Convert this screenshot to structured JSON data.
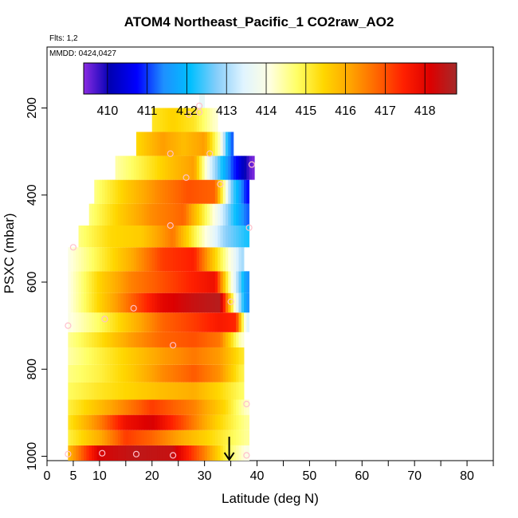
{
  "header": {
    "title": "ATOM4 Northeast_Pacific_1 CO2raw_AO2",
    "flights": "Flts: 1,2",
    "mmdd": "MMDD: 0424,0427"
  },
  "colors": {
    "scale": [
      "#8a2be2",
      "#0000b4",
      "#0000ff",
      "#1e90ff",
      "#00bfff",
      "#87cefa",
      "#e0f4ff",
      "#ffffe0",
      "#ffff66",
      "#ffd700",
      "#ffa500",
      "#ff6600",
      "#ff2000",
      "#dd0000",
      "#a52a2a"
    ],
    "marker": "#ffc0cb",
    "arrow": "#000000"
  },
  "chart_data": {
    "type": "heatmap",
    "title": "ATOM4 Northeast_Pacific_1 CO2raw_AO2",
    "xlabel": "Latitude (deg N)",
    "ylabel": "PSXC (mbar)",
    "xlim": [
      0,
      85
    ],
    "ylim": [
      1010,
      60
    ],
    "x_ticks": [
      0,
      5,
      10,
      20,
      30,
      40,
      50,
      60,
      70,
      80
    ],
    "x_minor_ticks": [
      15,
      25,
      35,
      45,
      55,
      65,
      75,
      85
    ],
    "y_ticks": [
      200,
      400,
      600,
      800,
      1000
    ],
    "colorbar": {
      "min": 409.4,
      "max": 418.8,
      "ticks": [
        410,
        411,
        412,
        413,
        414,
        415,
        416,
        417,
        418
      ]
    },
    "bands": [
      {
        "p_top": 975,
        "p_bot": 1010,
        "lat_min": 4,
        "lat_max": 38,
        "lats": [
          4,
          10,
          17,
          24,
          30,
          34,
          38
        ],
        "vals": [
          415.8,
          418.2,
          418.5,
          418.4,
          416.5,
          415.0,
          414.0
        ]
      },
      {
        "p_top": 940,
        "p_bot": 975,
        "lat_min": 4,
        "lat_max": 38,
        "lats": [
          4,
          10,
          15,
          20,
          26,
          32,
          38
        ],
        "vals": [
          415.0,
          416.0,
          417.2,
          416.8,
          416.0,
          415.3,
          414.5
        ]
      },
      {
        "p_top": 905,
        "p_bot": 940,
        "lat_min": 4,
        "lat_max": 38,
        "lats": [
          4,
          10,
          15,
          20,
          26,
          32,
          38
        ],
        "vals": [
          415.2,
          416.5,
          417.8,
          418.2,
          417.0,
          415.6,
          414.5
        ]
      },
      {
        "p_top": 870,
        "p_bot": 905,
        "lat_min": 4,
        "lat_max": 38,
        "lats": [
          4,
          10,
          15,
          20,
          28,
          34,
          38
        ],
        "vals": [
          415.0,
          415.8,
          416.5,
          417.2,
          416.5,
          415.4,
          414.2
        ]
      },
      {
        "p_top": 830,
        "p_bot": 870,
        "lat_min": 4,
        "lat_max": 37,
        "lats": [
          4,
          10,
          16,
          22,
          28,
          33,
          37
        ],
        "vals": [
          414.8,
          415.2,
          415.5,
          415.8,
          416.0,
          415.4,
          414.8
        ]
      },
      {
        "p_top": 790,
        "p_bot": 830,
        "lat_min": 4,
        "lat_max": 37,
        "lats": [
          4,
          10,
          16,
          22,
          28,
          33,
          37
        ],
        "vals": [
          414.6,
          415.0,
          415.6,
          416.4,
          416.9,
          416.3,
          415.0
        ]
      },
      {
        "p_top": 750,
        "p_bot": 790,
        "lat_min": 4,
        "lat_max": 37,
        "lats": [
          4,
          10,
          16,
          22,
          28,
          33,
          37
        ],
        "vals": [
          414.4,
          415.0,
          415.6,
          416.2,
          416.6,
          416.2,
          415.2
        ]
      },
      {
        "p_top": 715,
        "p_bot": 750,
        "lat_min": 4,
        "lat_max": 37,
        "lats": [
          4,
          10,
          16,
          22,
          28,
          33,
          37
        ],
        "vals": [
          414.5,
          415.3,
          416.2,
          416.8,
          417.0,
          416.6,
          414.2
        ]
      },
      {
        "p_top": 670,
        "p_bot": 715,
        "lat_min": 4,
        "lat_max": 38,
        "lats": [
          4,
          10,
          16,
          22,
          28,
          33,
          36,
          38
        ],
        "vals": [
          414.0,
          414.8,
          415.8,
          416.8,
          417.2,
          417.6,
          417.4,
          413.5
        ]
      },
      {
        "p_top": 625,
        "p_bot": 670,
        "lat_min": 4,
        "lat_max": 38,
        "lats": [
          4,
          10,
          16,
          22,
          28,
          33,
          36,
          38
        ],
        "vals": [
          414.0,
          415.5,
          416.8,
          418.0,
          418.4,
          418.6,
          413.8,
          411.5
        ]
      },
      {
        "p_top": 575,
        "p_bot": 625,
        "lat_min": 4,
        "lat_max": 38,
        "lats": [
          4,
          10,
          16,
          22,
          28,
          32,
          35,
          38
        ],
        "vals": [
          414.0,
          415.5,
          416.5,
          417.0,
          417.5,
          417.8,
          414.2,
          411.5
        ]
      },
      {
        "p_top": 520,
        "p_bot": 575,
        "lat_min": 4,
        "lat_max": 37,
        "lats": [
          4,
          10,
          16,
          22,
          28,
          33,
          37
        ],
        "vals": [
          414.0,
          415.0,
          416.0,
          417.2,
          417.5,
          415.0,
          413.0
        ]
      },
      {
        "p_top": 470,
        "p_bot": 520,
        "lat_min": 6,
        "lat_max": 38,
        "lats": [
          6,
          12,
          18,
          24,
          30,
          34,
          38
        ],
        "vals": [
          414.6,
          415.4,
          415.6,
          416.6,
          414.2,
          412.8,
          412.2
        ]
      },
      {
        "p_top": 420,
        "p_bot": 470,
        "lat_min": 8,
        "lat_max": 38,
        "lats": [
          8,
          14,
          20,
          26,
          31,
          35,
          38
        ],
        "vals": [
          414.6,
          415.6,
          416.4,
          416.8,
          414.5,
          412.5,
          411.2
        ]
      },
      {
        "p_top": 365,
        "p_bot": 420,
        "lat_min": 9,
        "lat_max": 38,
        "lats": [
          9,
          15,
          21,
          27,
          32,
          35,
          38
        ],
        "vals": [
          414.6,
          415.6,
          416.4,
          417.0,
          416.8,
          412.8,
          410.8
        ]
      },
      {
        "p_top": 310,
        "p_bot": 365,
        "lat_min": 13,
        "lat_max": 39,
        "lats": [
          13,
          18,
          24,
          28,
          31,
          35,
          39
        ],
        "vals": [
          414.4,
          415.0,
          415.8,
          416.2,
          413.5,
          411.2,
          409.5
        ]
      },
      {
        "p_top": 255,
        "p_bot": 310,
        "lat_min": 17,
        "lat_max": 35,
        "lats": [
          17,
          22,
          26,
          30,
          33,
          35
        ],
        "vals": [
          415.4,
          416.2,
          415.8,
          416.2,
          414.2,
          411.2
        ]
      },
      {
        "p_top": 200,
        "p_bot": 255,
        "lat_min": 20,
        "lat_max": 32,
        "lats": [
          20,
          24,
          28,
          32
        ],
        "vals": [
          415.2,
          415.5,
          415.2,
          414.2
        ]
      },
      {
        "p_top": 165,
        "p_bot": 200,
        "lat_min": 29,
        "lat_max": 29.5,
        "lats": [
          29,
          29.5
        ],
        "vals": [
          413.6,
          413.6
        ]
      }
    ],
    "markers": [
      {
        "lat": 4,
        "p": 995
      },
      {
        "lat": 10.5,
        "p": 993
      },
      {
        "lat": 17,
        "p": 995
      },
      {
        "lat": 24,
        "p": 998
      },
      {
        "lat": 38,
        "p": 998
      },
      {
        "lat": 38,
        "p": 880
      },
      {
        "lat": 24,
        "p": 745
      },
      {
        "lat": 4,
        "p": 700
      },
      {
        "lat": 11,
        "p": 685
      },
      {
        "lat": 16.5,
        "p": 660
      },
      {
        "lat": 35,
        "p": 645
      },
      {
        "lat": 5,
        "p": 520
      },
      {
        "lat": 23.5,
        "p": 470
      },
      {
        "lat": 38.5,
        "p": 475
      },
      {
        "lat": 33,
        "p": 375
      },
      {
        "lat": 26.5,
        "p": 360
      },
      {
        "lat": 23.5,
        "p": 305
      },
      {
        "lat": 31,
        "p": 305
      },
      {
        "lat": 39,
        "p": 330
      },
      {
        "lat": 27,
        "p": 215
      },
      {
        "lat": 29,
        "p": 210
      },
      {
        "lat": 29,
        "p": 195
      }
    ],
    "arrow": {
      "lat": 34.7,
      "p_from": 955,
      "p_to": 1008
    }
  }
}
